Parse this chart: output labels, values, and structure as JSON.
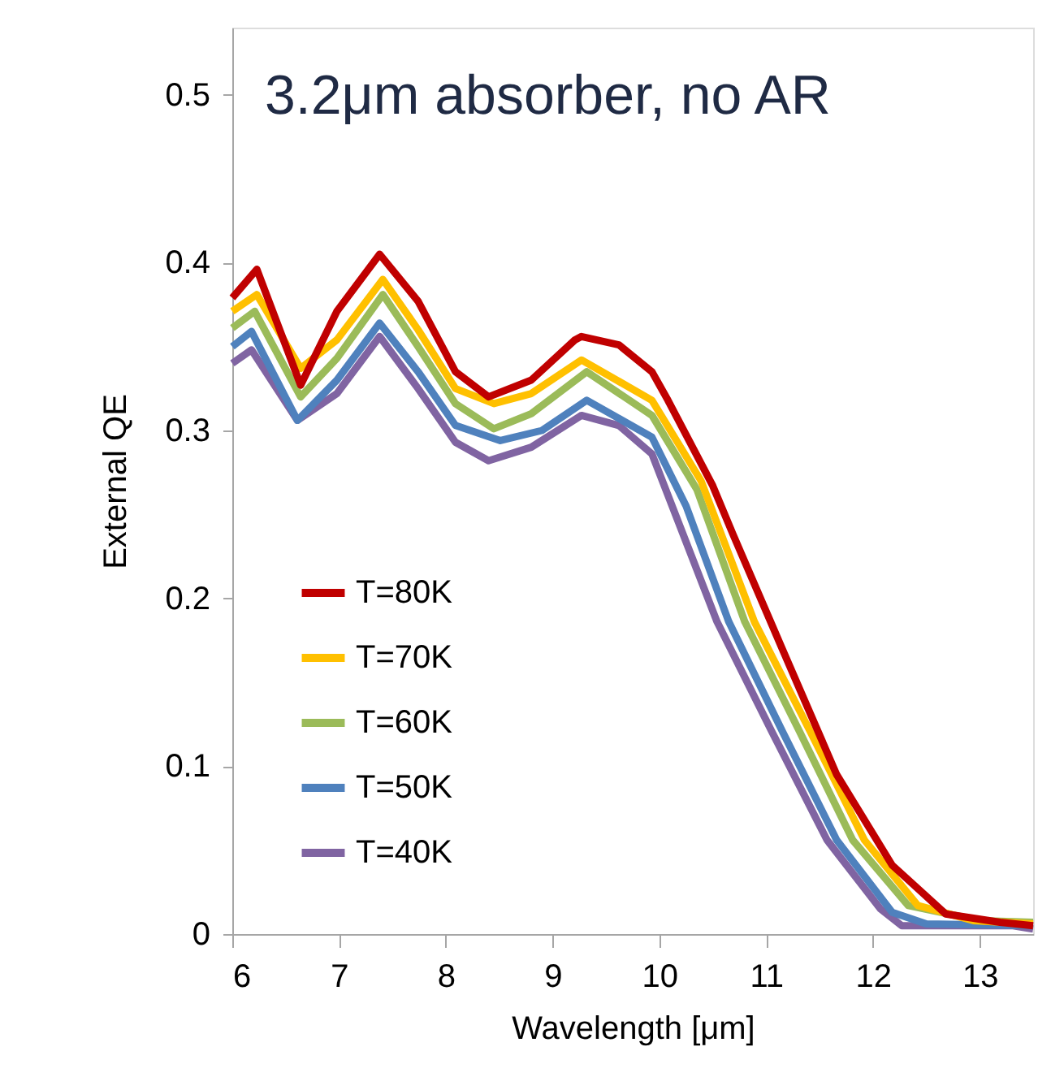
{
  "chart_data": {
    "type": "line",
    "title": "3.2μm absorber, no AR",
    "xlabel": "Wavelength [μm]",
    "ylabel": "External QE",
    "xlim": [
      6,
      13.5
    ],
    "ylim": [
      0,
      0.54
    ],
    "xticks": [
      6,
      7,
      8,
      9,
      10,
      11,
      12,
      13
    ],
    "yticks": [
      0,
      0.1,
      0.2,
      0.3,
      0.4,
      0.5
    ],
    "grid": false,
    "legend": "left",
    "marker": "none",
    "line_style": "solid",
    "series": [
      {
        "name": "T=80K",
        "color": "#c00000",
        "x": [
          6,
          6.23,
          6.64,
          6.98,
          7.38,
          7.74,
          8.09,
          8.4,
          8.8,
          9.21,
          9.27,
          9.62,
          9.93,
          10.08,
          10.5,
          10.69,
          11.15,
          11.66,
          12.18,
          12.68,
          13.19,
          13.5
        ],
        "values": [
          0.379,
          0.396,
          0.327,
          0.371,
          0.405,
          0.377,
          0.335,
          0.32,
          0.33,
          0.354,
          0.356,
          0.351,
          0.335,
          0.318,
          0.267,
          0.238,
          0.17,
          0.095,
          0.041,
          0.012,
          0.007,
          0.005
        ]
      },
      {
        "name": "T=70K",
        "color": "#ffc000",
        "x": [
          6,
          6.23,
          6.64,
          6.98,
          7.41,
          7.74,
          8.09,
          8.45,
          8.8,
          9.27,
          9.93,
          10.39,
          10.89,
          11.41,
          11.92,
          12.42,
          12.94,
          13.5
        ],
        "values": [
          0.371,
          0.381,
          0.337,
          0.354,
          0.39,
          0.36,
          0.325,
          0.316,
          0.322,
          0.342,
          0.318,
          0.27,
          0.186,
          0.121,
          0.056,
          0.017,
          0.008,
          0.006
        ]
      },
      {
        "name": "T=60K",
        "color": "#9bbb59",
        "x": [
          6,
          6.21,
          6.64,
          6.98,
          7.41,
          7.74,
          8.09,
          8.45,
          8.8,
          9.32,
          9.93,
          10.35,
          10.8,
          11.31,
          11.81,
          12.33,
          13,
          13.5
        ],
        "values": [
          0.361,
          0.371,
          0.32,
          0.343,
          0.381,
          0.35,
          0.316,
          0.301,
          0.31,
          0.335,
          0.309,
          0.265,
          0.186,
          0.121,
          0.056,
          0.017,
          0.008,
          0.007
        ]
      },
      {
        "name": "T=50K",
        "color": "#4f81bd",
        "x": [
          6,
          6.18,
          6.61,
          6.98,
          7.38,
          7.74,
          8.09,
          8.51,
          8.9,
          9.32,
          9.93,
          10.25,
          10.65,
          11.15,
          11.66,
          12.18,
          12.5,
          13.5
        ],
        "values": [
          0.35,
          0.359,
          0.306,
          0.33,
          0.364,
          0.335,
          0.303,
          0.294,
          0.3,
          0.318,
          0.296,
          0.255,
          0.186,
          0.121,
          0.056,
          0.013,
          0.006,
          0.005
        ]
      },
      {
        "name": "T=40K",
        "color": "#8064a2",
        "x": [
          6,
          6.18,
          6.61,
          6.98,
          7.38,
          7.74,
          8.09,
          8.4,
          8.8,
          9.27,
          9.62,
          9.93,
          10.54,
          11.05,
          11.57,
          12.07,
          12.27,
          13.3,
          13.5
        ],
        "values": [
          0.34,
          0.348,
          0.306,
          0.322,
          0.356,
          0.325,
          0.293,
          0.282,
          0.29,
          0.309,
          0.303,
          0.286,
          0.186,
          0.121,
          0.056,
          0.015,
          0.005,
          0.005,
          0.003
        ]
      }
    ]
  }
}
